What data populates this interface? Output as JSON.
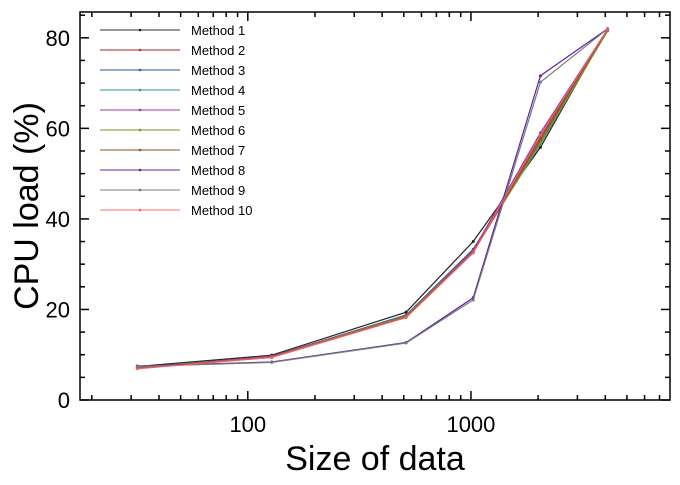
{
  "chart_data": {
    "type": "line",
    "title": "",
    "xlabel": "Size of data",
    "ylabel": "CPU load (%)",
    "xscale": "log",
    "xlim": [
      17.7,
      7800
    ],
    "ylim": [
      0,
      85.7
    ],
    "xticks": [
      {
        "value": 100,
        "label": "100"
      },
      {
        "value": 1000,
        "label": "1000"
      }
    ],
    "yticks": [
      {
        "value": 0,
        "label": "0"
      },
      {
        "value": 20,
        "label": "20"
      },
      {
        "value": 40,
        "label": "40"
      },
      {
        "value": 60,
        "label": "60"
      },
      {
        "value": 80,
        "label": "80"
      }
    ],
    "grid": false,
    "legend_position": "top-left",
    "x": [
      32,
      128,
      512,
      1024,
      2048,
      4096
    ],
    "series": [
      {
        "name": "Method 1",
        "color": "#222222",
        "legend_color": "#777777",
        "values": [
          7.4,
          9.9,
          19.4,
          35.0,
          55.8,
          82.0
        ]
      },
      {
        "name": "Method 2",
        "color": "#b03a3a",
        "legend_color": "#c07070",
        "values": [
          7.0,
          9.5,
          18.4,
          32.8,
          58.0,
          81.8
        ]
      },
      {
        "name": "Method 3",
        "color": "#2f5f9f",
        "legend_color": "#6f8fb5",
        "values": [
          7.2,
          9.6,
          18.8,
          33.3,
          57.0,
          81.8
        ]
      },
      {
        "name": "Method 4",
        "color": "#2a9a90",
        "legend_color": "#70bab5",
        "values": [
          7.2,
          9.6,
          18.7,
          33.0,
          56.5,
          81.6
        ]
      },
      {
        "name": "Method 5",
        "color": "#a030a8",
        "legend_color": "#c07ac0",
        "values": [
          7.1,
          9.7,
          18.6,
          33.0,
          59.0,
          81.9
        ]
      },
      {
        "name": "Method 6",
        "color": "#909020",
        "legend_color": "#b0b070",
        "values": [
          7.1,
          9.5,
          18.5,
          32.7,
          56.8,
          81.5
        ]
      },
      {
        "name": "Method 7",
        "color": "#8a5a2a",
        "legend_color": "#b08a6a",
        "values": [
          7.0,
          9.4,
          18.3,
          32.6,
          57.5,
          81.7
        ]
      },
      {
        "name": "Method 8",
        "color": "#6020a8",
        "legend_color": "#9a70c0",
        "values": [
          7.5,
          8.4,
          12.7,
          22.6,
          71.6,
          82.0
        ]
      },
      {
        "name": "Method 9",
        "color": "#777777",
        "legend_color": "#aaaaaa",
        "values": [
          7.4,
          8.3,
          12.6,
          22.1,
          70.2,
          82.0
        ]
      },
      {
        "name": "Method 10",
        "color": "#f06060",
        "legend_color": "#ffa0a0",
        "values": [
          6.9,
          9.4,
          18.2,
          32.5,
          58.5,
          81.9
        ]
      }
    ]
  }
}
